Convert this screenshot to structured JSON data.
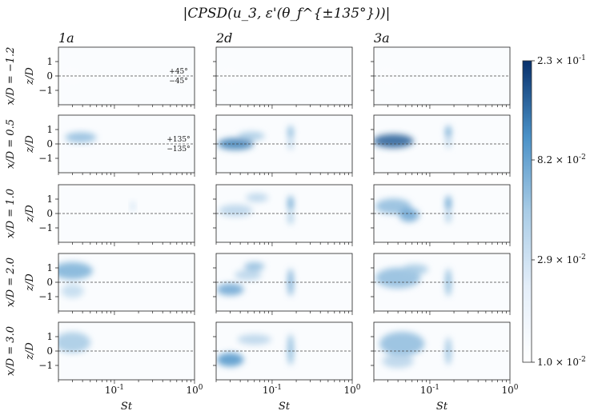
{
  "chart_data": {
    "type": "heatmap",
    "title": "|CPSD(u_3, ε'(θ_f^{±135°}))|",
    "columns": [
      "1a",
      "2d",
      "3a"
    ],
    "rows": [
      "x/D = −1.2",
      "x/D = 0.5",
      "x/D = 1.0",
      "x/D = 2.0",
      "x/D = 3.0"
    ],
    "xlabel": "St",
    "ylabel": "z/D",
    "xscale": "log",
    "xlim": [
      0.02,
      1.0
    ],
    "ylim": [
      -2,
      2
    ],
    "xticklabels": [
      "10^{-1}",
      "10^{0}"
    ],
    "yticklabels": [
      "1",
      "0",
      "−1"
    ],
    "reference_line": "z/D = 0 (dashed)",
    "annotations": [
      {
        "row": 0,
        "col": 0,
        "lines": [
          "+45°",
          "−45°"
        ]
      },
      {
        "row": 1,
        "col": 0,
        "lines": [
          "+135°",
          "−135°"
        ]
      }
    ],
    "colorbar": {
      "scale": "log",
      "min": 0.01,
      "max": 0.23,
      "tick_values": [
        0.23,
        0.082,
        0.029,
        0.01
      ],
      "tick_labels": [
        "2.3 × 10^{-1}",
        "8.2 × 10^{-2}",
        "2.9 × 10^{-2}",
        "1.0 × 10^{-2}"
      ]
    },
    "blobs": [
      {
        "row": 0,
        "col": 0,
        "St": 0.03,
        "z": 0.0,
        "sSt": 0.1,
        "sz": 0.5,
        "v": 0.011
      },
      {
        "row": 0,
        "col": 1,
        "St": 0.03,
        "z": 0.0,
        "sSt": 0.1,
        "sz": 0.5,
        "v": 0.011
      },
      {
        "row": 0,
        "col": 2,
        "St": 0.03,
        "z": 0.0,
        "sSt": 0.1,
        "sz": 0.5,
        "v": 0.011
      },
      {
        "row": 1,
        "col": 0,
        "St": 0.038,
        "z": 0.45,
        "sSt": 0.14,
        "sz": 0.3,
        "v": 0.06
      },
      {
        "row": 1,
        "col": 1,
        "St": 0.035,
        "z": 0.0,
        "sSt": 0.16,
        "sz": 0.35,
        "v": 0.12
      },
      {
        "row": 1,
        "col": 1,
        "St": 0.055,
        "z": 0.55,
        "sSt": 0.12,
        "sz": 0.25,
        "v": 0.05
      },
      {
        "row": 1,
        "col": 1,
        "St": 0.17,
        "z": 0.8,
        "sSt": 0.025,
        "sz": 0.4,
        "v": 0.07
      },
      {
        "row": 1,
        "col": 1,
        "St": 0.17,
        "z": 0.0,
        "sSt": 0.025,
        "sz": 0.35,
        "v": 0.04
      },
      {
        "row": 1,
        "col": 2,
        "St": 0.035,
        "z": 0.2,
        "sSt": 0.18,
        "sz": 0.4,
        "v": 0.16
      },
      {
        "row": 1,
        "col": 2,
        "St": 0.17,
        "z": 0.8,
        "sSt": 0.025,
        "sz": 0.4,
        "v": 0.09
      },
      {
        "row": 1,
        "col": 2,
        "St": 0.17,
        "z": 0.1,
        "sSt": 0.025,
        "sz": 0.35,
        "v": 0.04
      },
      {
        "row": 2,
        "col": 0,
        "St": 0.17,
        "z": 0.5,
        "sSt": 0.02,
        "sz": 0.3,
        "v": 0.03
      },
      {
        "row": 2,
        "col": 1,
        "St": 0.035,
        "z": 0.2,
        "sSt": 0.15,
        "sz": 0.35,
        "v": 0.04
      },
      {
        "row": 2,
        "col": 1,
        "St": 0.065,
        "z": 1.1,
        "sSt": 0.1,
        "sz": 0.25,
        "v": 0.04
      },
      {
        "row": 2,
        "col": 1,
        "St": 0.17,
        "z": 0.7,
        "sSt": 0.025,
        "sz": 0.45,
        "v": 0.09
      },
      {
        "row": 2,
        "col": 1,
        "St": 0.17,
        "z": -0.3,
        "sSt": 0.025,
        "sz": 0.4,
        "v": 0.05
      },
      {
        "row": 2,
        "col": 2,
        "St": 0.035,
        "z": 0.5,
        "sSt": 0.16,
        "sz": 0.45,
        "v": 0.06
      },
      {
        "row": 2,
        "col": 2,
        "St": 0.055,
        "z": -0.1,
        "sSt": 0.09,
        "sz": 0.4,
        "v": 0.08
      },
      {
        "row": 2,
        "col": 2,
        "St": 0.17,
        "z": 0.7,
        "sSt": 0.025,
        "sz": 0.45,
        "v": 0.1
      },
      {
        "row": 2,
        "col": 2,
        "St": 0.17,
        "z": -0.2,
        "sSt": 0.025,
        "sz": 0.4,
        "v": 0.05
      },
      {
        "row": 3,
        "col": 0,
        "St": 0.03,
        "z": 0.8,
        "sSt": 0.18,
        "sz": 0.5,
        "v": 0.07
      },
      {
        "row": 3,
        "col": 0,
        "St": 0.03,
        "z": -0.6,
        "sSt": 0.1,
        "sz": 0.4,
        "v": 0.035
      },
      {
        "row": 3,
        "col": 1,
        "St": 0.03,
        "z": -0.5,
        "sSt": 0.12,
        "sz": 0.35,
        "v": 0.08
      },
      {
        "row": 3,
        "col": 1,
        "St": 0.06,
        "z": 1.1,
        "sSt": 0.09,
        "sz": 0.25,
        "v": 0.06
      },
      {
        "row": 3,
        "col": 1,
        "St": 0.05,
        "z": 0.5,
        "sSt": 0.12,
        "sz": 0.3,
        "v": 0.04
      },
      {
        "row": 3,
        "col": 1,
        "St": 0.17,
        "z": 0.0,
        "sSt": 0.025,
        "sz": 0.8,
        "v": 0.08
      },
      {
        "row": 3,
        "col": 2,
        "St": 0.04,
        "z": 0.3,
        "sSt": 0.2,
        "sz": 0.6,
        "v": 0.06
      },
      {
        "row": 3,
        "col": 2,
        "St": 0.065,
        "z": 0.9,
        "sSt": 0.12,
        "sz": 0.3,
        "v": 0.05
      },
      {
        "row": 3,
        "col": 2,
        "St": 0.17,
        "z": 0.0,
        "sSt": 0.025,
        "sz": 0.8,
        "v": 0.07
      },
      {
        "row": 4,
        "col": 0,
        "St": 0.03,
        "z": 0.6,
        "sSt": 0.16,
        "sz": 0.6,
        "v": 0.05
      },
      {
        "row": 4,
        "col": 1,
        "St": 0.03,
        "z": -0.6,
        "sSt": 0.12,
        "sz": 0.4,
        "v": 0.1
      },
      {
        "row": 4,
        "col": 1,
        "St": 0.06,
        "z": 0.8,
        "sSt": 0.15,
        "sz": 0.3,
        "v": 0.04
      },
      {
        "row": 4,
        "col": 1,
        "St": 0.17,
        "z": 0.1,
        "sSt": 0.025,
        "sz": 0.9,
        "v": 0.07
      },
      {
        "row": 4,
        "col": 2,
        "St": 0.045,
        "z": 0.5,
        "sSt": 0.2,
        "sz": 0.7,
        "v": 0.06
      },
      {
        "row": 4,
        "col": 2,
        "St": 0.04,
        "z": -0.7,
        "sSt": 0.14,
        "sz": 0.4,
        "v": 0.04
      },
      {
        "row": 4,
        "col": 2,
        "St": 0.17,
        "z": 0.0,
        "sSt": 0.025,
        "sz": 0.8,
        "v": 0.06
      }
    ]
  }
}
